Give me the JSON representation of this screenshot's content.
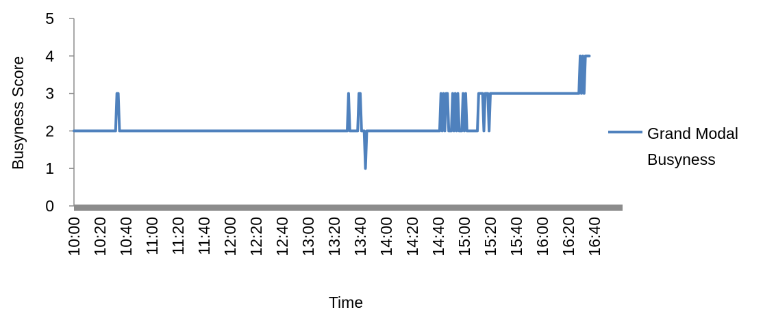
{
  "chart_data": {
    "type": "line",
    "title": "",
    "xlabel": "Time",
    "ylabel": "Busyness Score",
    "ylim": [
      0,
      5
    ],
    "yticks": [
      0,
      1,
      2,
      3,
      4,
      5
    ],
    "xlim": [
      "10:00",
      "17:00"
    ],
    "xticks": [
      "10:00",
      "10:20",
      "10:40",
      "11:00",
      "11:20",
      "11:40",
      "12:00",
      "12:20",
      "12:40",
      "13:00",
      "13:20",
      "13:40",
      "14:00",
      "14:20",
      "14:40",
      "15:00",
      "15:20",
      "15:40",
      "16:00",
      "16:20",
      "16:40"
    ],
    "grid": false,
    "legend": "right",
    "series": [
      {
        "name": "Grand Modal Busyness",
        "color": "#4f81bd",
        "points": [
          [
            "10:00",
            2
          ],
          [
            "10:32",
            2
          ],
          [
            "10:33",
            3
          ],
          [
            "10:34",
            3
          ],
          [
            "10:35",
            2
          ],
          [
            "13:30",
            2
          ],
          [
            "13:31",
            3
          ],
          [
            "13:32",
            2
          ],
          [
            "13:38",
            2
          ],
          [
            "13:39",
            3
          ],
          [
            "13:40",
            3
          ],
          [
            "13:41",
            2
          ],
          [
            "13:43",
            2
          ],
          [
            "13:44",
            1
          ],
          [
            "13:45",
            2
          ],
          [
            "14:41",
            2
          ],
          [
            "14:42",
            3
          ],
          [
            "14:43",
            2
          ],
          [
            "14:44",
            3
          ],
          [
            "14:45",
            2
          ],
          [
            "14:46",
            3
          ],
          [
            "14:47",
            3
          ],
          [
            "14:48",
            2
          ],
          [
            "14:50",
            2
          ],
          [
            "14:51",
            3
          ],
          [
            "14:52",
            2
          ],
          [
            "14:53",
            3
          ],
          [
            "14:54",
            2
          ],
          [
            "14:55",
            3
          ],
          [
            "14:56",
            2
          ],
          [
            "14:58",
            2
          ],
          [
            "14:59",
            3
          ],
          [
            "15:00",
            2
          ],
          [
            "15:01",
            3
          ],
          [
            "15:02",
            2
          ],
          [
            "15:10",
            2
          ],
          [
            "15:11",
            3
          ],
          [
            "15:14",
            3
          ],
          [
            "15:15",
            2
          ],
          [
            "15:16",
            3
          ],
          [
            "15:18",
            3
          ],
          [
            "15:19",
            2
          ],
          [
            "15:20",
            3
          ],
          [
            "16:28",
            3
          ],
          [
            "16:29",
            4
          ],
          [
            "16:30",
            3
          ],
          [
            "16:31",
            4
          ],
          [
            "16:32",
            3
          ],
          [
            "16:33",
            4
          ],
          [
            "16:36",
            4
          ]
        ]
      }
    ]
  }
}
